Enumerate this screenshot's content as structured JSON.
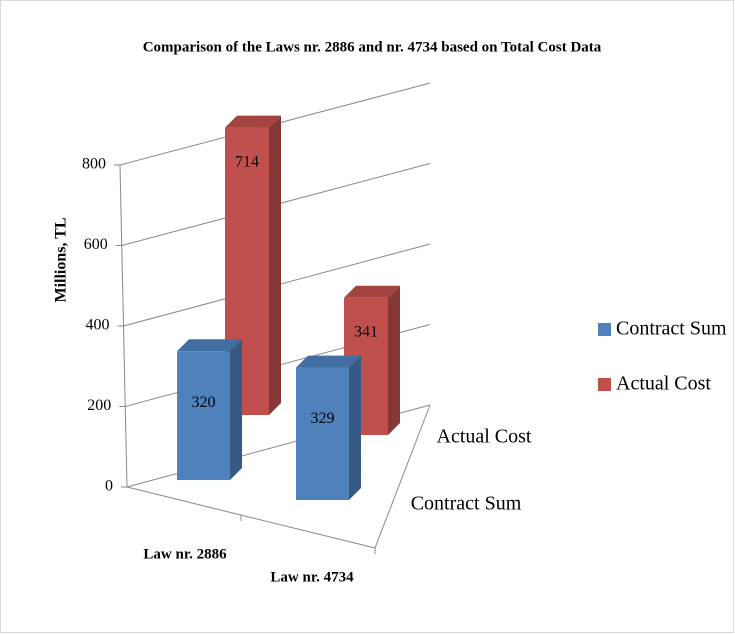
{
  "chart_data": {
    "type": "bar3d",
    "title": "Comparison of the Laws nr. 2886 and nr. 4734 based on Total Cost Data",
    "y_label": "Millions, TL",
    "categories": [
      "Law nr. 2886",
      "Law nr. 4734"
    ],
    "series": [
      {
        "name": "Contract Sum",
        "color": "#4f81bd",
        "values": [
          320,
          329
        ]
      },
      {
        "name": "Actual Cost",
        "color": "#c0504d",
        "values": [
          714,
          341
        ]
      }
    ],
    "ylim": [
      0,
      800
    ],
    "yticks": [
      0,
      200,
      400,
      600,
      800
    ],
    "grid": true,
    "legend": "right"
  }
}
